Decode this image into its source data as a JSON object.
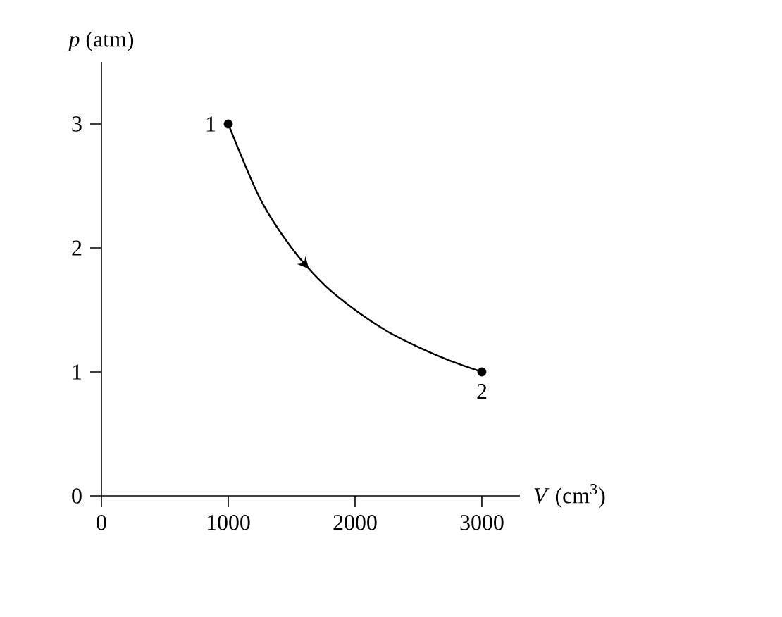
{
  "chart_data": {
    "type": "line",
    "xlabel": "*V* (cm$^{3}$)",
    "ylabel": "*p* (atm)",
    "xlim": [
      0,
      3300
    ],
    "ylim": [
      0,
      3.5
    ],
    "xticks": [
      0,
      1000,
      2000,
      3000
    ],
    "yticks": [
      0,
      1,
      2,
      3
    ],
    "grid": false,
    "line_style": "solid",
    "series": [
      {
        "color": "#000000",
        "marker": "none",
        "x": [
          1000,
          1250,
          1500,
          1750,
          2000,
          2250,
          2500,
          2750,
          3000
        ],
        "values": [
          3,
          2.4,
          2,
          1.71,
          1.5,
          1.33,
          1.2,
          1.09,
          1
        ]
      },
      {
        "type": "scatter",
        "color": "#000000",
        "marker": "circle",
        "x": [
          1000,
          3000
        ],
        "values": [
          3,
          1
        ]
      }
    ],
    "annotations": [
      {
        "text": "1",
        "x": 1000,
        "y": 3
      },
      {
        "text": "2",
        "x": 3000,
        "y": 1
      }
    ]
  }
}
